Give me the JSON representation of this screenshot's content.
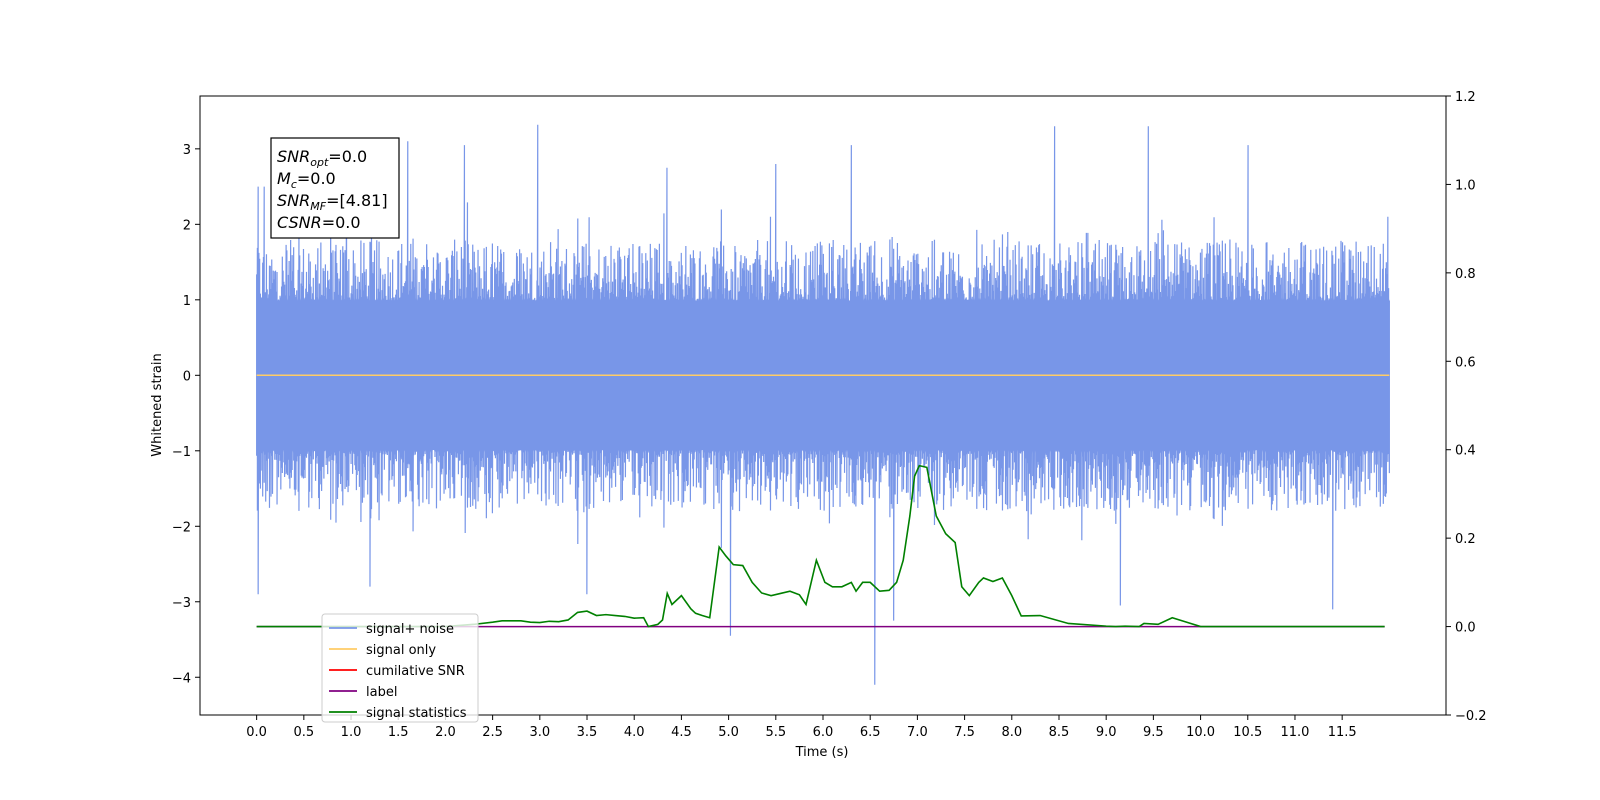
{
  "chart_data": {
    "type": "line",
    "xlabel": "Time (s)",
    "ylabel": "Whitened strain",
    "xlim": [
      -0.6,
      12.6
    ],
    "ylim": [
      -4.5,
      3.7
    ],
    "ylim_right": [
      -0.2,
      1.2
    ],
    "x_ticks": [
      "0.0",
      "0.5",
      "1.0",
      "1.5",
      "2.0",
      "2.5",
      "3.0",
      "3.5",
      "4.0",
      "4.5",
      "5.0",
      "5.5",
      "6.0",
      "6.5",
      "7.0",
      "7.5",
      "8.0",
      "8.5",
      "9.0",
      "9.5",
      "10.0",
      "10.5",
      "11.0",
      "11.5"
    ],
    "y_ticks_left": [
      "3",
      "2",
      "1",
      "0",
      "−1",
      "−2",
      "−3",
      "−4"
    ],
    "y_ticks_right": [
      "1.2",
      "1.0",
      "0.8",
      "0.6",
      "0.4",
      "0.2",
      "0.0",
      "−0.2"
    ],
    "annotation": {
      "lines": [
        {
          "main": "SNR",
          "sub": "opt",
          "rest": "=0.0"
        },
        {
          "main": "M",
          "sub": "c",
          "rest": "=0.0"
        },
        {
          "main": "SNR",
          "sub": "MF",
          "rest": "=[4.81]"
        },
        {
          "main": "CSNR",
          "sub": "",
          "rest": "=0.0"
        }
      ]
    },
    "legend_position": "lower-left",
    "legend": [
      {
        "label": "signal+ noise",
        "color": "#7896e8"
      },
      {
        "label": "signal only",
        "color": "#ffcc66"
      },
      {
        "label": "cumilative SNR",
        "color": "#ff0000"
      },
      {
        "label": "label",
        "color": "#800080"
      },
      {
        "label": "signal statistics",
        "color": "#008000"
      }
    ],
    "series": [
      {
        "name": "signal+ noise",
        "axis": "left",
        "color": "#7896e8",
        "x_range": [
          0.0,
          12.0
        ],
        "envelope_typical": [
          -1.8,
          1.8
        ],
        "spikes": [
          {
            "x": 0.02,
            "y": 2.5
          },
          {
            "x": 0.02,
            "y": -2.9
          },
          {
            "x": 0.08,
            "y": 2.5
          },
          {
            "x": 0.95,
            "y": 3.1
          },
          {
            "x": 1.2,
            "y": -2.8
          },
          {
            "x": 1.6,
            "y": 3.1
          },
          {
            "x": 2.2,
            "y": 3.05
          },
          {
            "x": 2.98,
            "y": 3.32
          },
          {
            "x": 3.5,
            "y": -2.9
          },
          {
            "x": 4.35,
            "y": 2.75
          },
          {
            "x": 5.02,
            "y": -3.45
          },
          {
            "x": 5.5,
            "y": 2.8
          },
          {
            "x": 6.3,
            "y": 3.05
          },
          {
            "x": 6.55,
            "y": -4.1
          },
          {
            "x": 6.75,
            "y": -3.25
          },
          {
            "x": 8.45,
            "y": 3.3
          },
          {
            "x": 9.15,
            "y": -3.05
          },
          {
            "x": 9.45,
            "y": 3.3
          },
          {
            "x": 10.5,
            "y": 3.05
          },
          {
            "x": 11.4,
            "y": -3.1
          },
          {
            "x": 11.98,
            "y": 2.1
          }
        ]
      },
      {
        "name": "signal only",
        "axis": "left",
        "color": "#ffcc66",
        "x": [
          0.0,
          12.0
        ],
        "y": [
          0.0,
          0.0
        ]
      },
      {
        "name": "label",
        "axis": "right",
        "color": "#800080",
        "x": [
          0.0,
          11.95
        ],
        "y": [
          0.0,
          0.0
        ]
      },
      {
        "name": "signal statistics",
        "axis": "right",
        "color": "#008000",
        "x": [
          0.0,
          1.0,
          2.0,
          2.3,
          2.5,
          2.6,
          2.8,
          2.9,
          3.0,
          3.1,
          3.2,
          3.3,
          3.4,
          3.5,
          3.6,
          3.7,
          3.8,
          3.9,
          4.0,
          4.1,
          4.15,
          4.25,
          4.3,
          4.35,
          4.4,
          4.5,
          4.6,
          4.65,
          4.72,
          4.8,
          4.9,
          4.97,
          5.05,
          5.15,
          5.25,
          5.35,
          5.45,
          5.55,
          5.65,
          5.75,
          5.82,
          5.93,
          6.02,
          6.1,
          6.2,
          6.3,
          6.35,
          6.42,
          6.5,
          6.6,
          6.7,
          6.78,
          6.85,
          6.92,
          6.97,
          7.02,
          7.1,
          7.2,
          7.3,
          7.4,
          7.47,
          7.55,
          7.65,
          7.7,
          7.8,
          7.9,
          8.0,
          8.1,
          8.3,
          8.6,
          9.0,
          9.1,
          9.2,
          9.35,
          9.4,
          9.55,
          9.7,
          9.85,
          10.0,
          11.0,
          11.95
        ],
        "y": [
          0.0,
          0.0,
          0.0,
          0.005,
          0.01,
          0.013,
          0.013,
          0.01,
          0.009,
          0.012,
          0.011,
          0.015,
          0.032,
          0.035,
          0.025,
          0.027,
          0.025,
          0.023,
          0.019,
          0.02,
          0.0,
          0.005,
          0.015,
          0.075,
          0.05,
          0.07,
          0.04,
          0.03,
          0.025,
          0.02,
          0.18,
          0.16,
          0.14,
          0.138,
          0.1,
          0.076,
          0.07,
          0.075,
          0.08,
          0.072,
          0.05,
          0.15,
          0.1,
          0.09,
          0.09,
          0.1,
          0.08,
          0.1,
          0.1,
          0.08,
          0.082,
          0.1,
          0.15,
          0.25,
          0.34,
          0.364,
          0.36,
          0.25,
          0.21,
          0.19,
          0.09,
          0.07,
          0.1,
          0.11,
          0.102,
          0.11,
          0.07,
          0.024,
          0.025,
          0.007,
          0.001,
          0.0,
          0.001,
          0.0,
          0.007,
          0.005,
          0.02,
          0.01,
          0.0,
          0.0,
          0.0
        ]
      }
    ]
  }
}
